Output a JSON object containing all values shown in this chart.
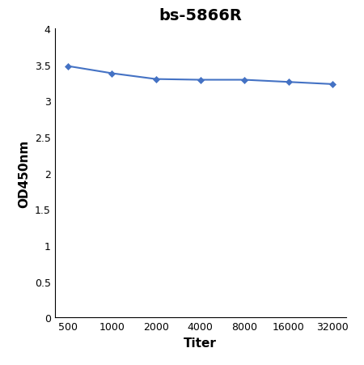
{
  "title": "bs-5866R",
  "xlabel": "Titer",
  "ylabel": "OD450nm",
  "x_positions": [
    0,
    1,
    2,
    3,
    4,
    5,
    6
  ],
  "x_labels": [
    "500",
    "1000",
    "2000",
    "4000",
    "8000",
    "16000",
    "32000"
  ],
  "y_values": [
    3.48,
    3.38,
    3.3,
    3.29,
    3.29,
    3.26,
    3.23
  ],
  "line_color": "#4472C4",
  "marker": "D",
  "marker_size": 4,
  "linewidth": 1.5,
  "ylim": [
    0,
    4.0
  ],
  "yticks": [
    0,
    0.5,
    1,
    1.5,
    2,
    2.5,
    3,
    3.5,
    4
  ],
  "ytick_labels": [
    "0",
    "0.5",
    "1",
    "1.5",
    "2",
    "2.5",
    "3",
    "3.5",
    "4"
  ],
  "title_fontsize": 14,
  "label_fontsize": 11,
  "tick_fontsize": 9,
  "background_color": "#ffffff",
  "title_fontweight": "bold",
  "xlabel_fontweight": "bold",
  "ylabel_fontweight": "bold"
}
